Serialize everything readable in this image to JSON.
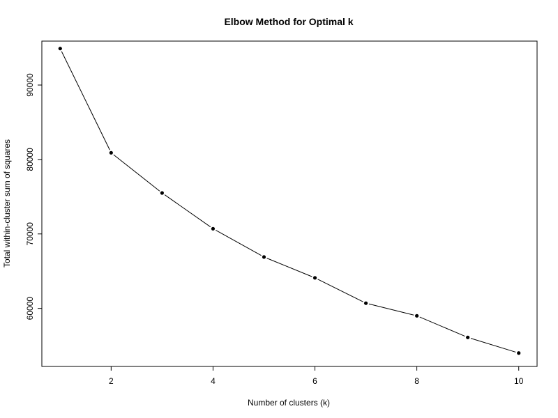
{
  "chart_data": {
    "type": "line",
    "title": "Elbow Method for Optimal k",
    "xlabel": "Number of clusters (k)",
    "ylabel": "Total within-cluster sum of squares",
    "x": [
      1,
      2,
      3,
      4,
      5,
      6,
      7,
      8,
      9,
      10
    ],
    "series": [
      {
        "values": [
          94900,
          80900,
          75500,
          70700,
          66900,
          64100,
          60700,
          59000,
          56100,
          54000
        ]
      }
    ],
    "xlim": [
      0.64,
      10.36
    ],
    "ylim": [
      52200,
      95900
    ],
    "xticks": [
      2,
      4,
      6,
      8,
      10
    ],
    "yticks": [
      60000,
      70000,
      80000,
      90000
    ],
    "grid": false,
    "legend": "none",
    "colors": {
      "line": "#000000",
      "points": "#000000",
      "frame": "#000000"
    }
  }
}
